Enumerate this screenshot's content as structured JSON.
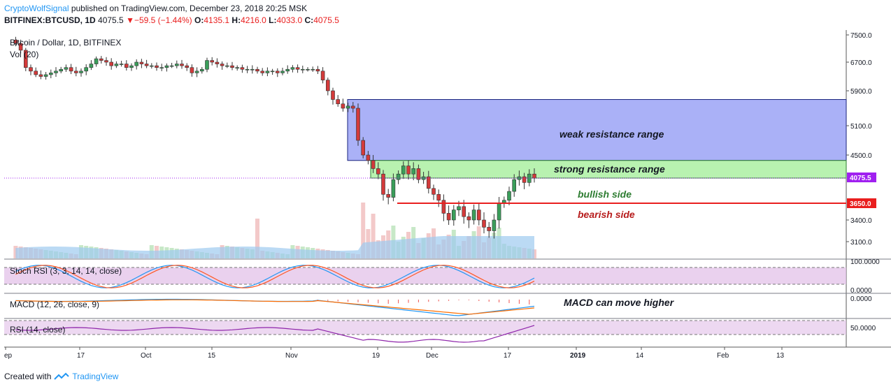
{
  "header": {
    "publisher": "CryptoWolfSignal",
    "published_text": " published on TradingView.com, December 23, 2018 20:25 MSK",
    "symbol": "BITFINEX:BTCUSD, 1D",
    "last": "4075.5",
    "change": "−59.5 (−1.44%)",
    "o_label": "O:",
    "o": "4135.1",
    "h_label": "H:",
    "h": "4216.0",
    "l_label": "L:",
    "l": "4033.0",
    "c_label": "C:",
    "c": "4075.5"
  },
  "footer": {
    "created_with": "Created with",
    "brand": "TradingView"
  },
  "colors": {
    "up": "#3a9e5a",
    "down": "#d33a3a",
    "weak_zone": "#aab1f7",
    "strong_zone": "#b8f2b0",
    "support": "#e91e1e",
    "price_line": "#a020f0"
  },
  "chart_data": {
    "type": "candlestick",
    "title": "Bitcoin / Dollar, 1D, BITFINEX",
    "volume_label": "Vol (20)",
    "y_ticks": [
      7500.0,
      6700.0,
      5900.0,
      5100.0,
      4500.0,
      3400.0,
      3100.0
    ],
    "y_tick_labels": [
      "7500.0",
      "6700.0",
      "5900.0",
      "5100.0",
      "4500.0",
      "3400.0",
      "3100.0"
    ],
    "x_tick_labels": [
      "ep",
      "17",
      "Oct",
      "15",
      "Nov",
      "19",
      "Dec",
      "17",
      "2019",
      "14",
      "Feb",
      "13"
    ],
    "last_price_label": "4075.5",
    "support_label": "3650.0",
    "zones": [
      {
        "label": "weak resistance range",
        "low": 4400,
        "high": 5700
      },
      {
        "label": "strong resistance range",
        "low": 4075,
        "high": 4400
      }
    ],
    "levels": [
      {
        "value": 3650,
        "above_label": "bullish side",
        "below_label": "bearish side"
      }
    ],
    "closes": [
      7150,
      7350,
      7250,
      7050,
      6550,
      6450,
      6350,
      6300,
      6350,
      6400,
      6450,
      6500,
      6550,
      6450,
      6400,
      6450,
      6550,
      6650,
      6800,
      6750,
      6700,
      6600,
      6650,
      6650,
      6550,
      6600,
      6700,
      6650,
      6600,
      6600,
      6550,
      6550,
      6600,
      6600,
      6650,
      6600,
      6550,
      6400,
      6450,
      6500,
      6750,
      6700,
      6650,
      6600,
      6600,
      6550,
      6550,
      6500,
      6500,
      6500,
      6450,
      6400,
      6450,
      6450,
      6400,
      6450,
      6500,
      6550,
      6500,
      6500,
      6500,
      6500,
      6450,
      6200,
      5900,
      5700,
      5600,
      5500,
      5550,
      5500,
      4800,
      4500,
      4400,
      4250,
      4150,
      3800,
      3750,
      4050,
      4150,
      4300,
      4150,
      4250,
      4050,
      4100,
      3900,
      3800,
      3700,
      3500,
      3400,
      3550,
      3600,
      3450,
      3400,
      3550,
      3400,
      3300,
      3250,
      3400,
      3650,
      3700,
      3850,
      4050,
      4100,
      4000,
      4150,
      4075
    ],
    "candle_start_index": 2,
    "stoch_rsi": {
      "label": "Stoch RSI (3, 3, 14, 14, close)",
      "ticks": [
        "100.0000",
        "0.0000"
      ]
    },
    "macd": {
      "label": "MACD (12, 26, close, 9)",
      "ticks": [
        "0.0000"
      ],
      "annotation": "MACD can move higher"
    },
    "rsi": {
      "label": "RSI (14, close)",
      "ticks": [
        "50.0000"
      ]
    }
  }
}
